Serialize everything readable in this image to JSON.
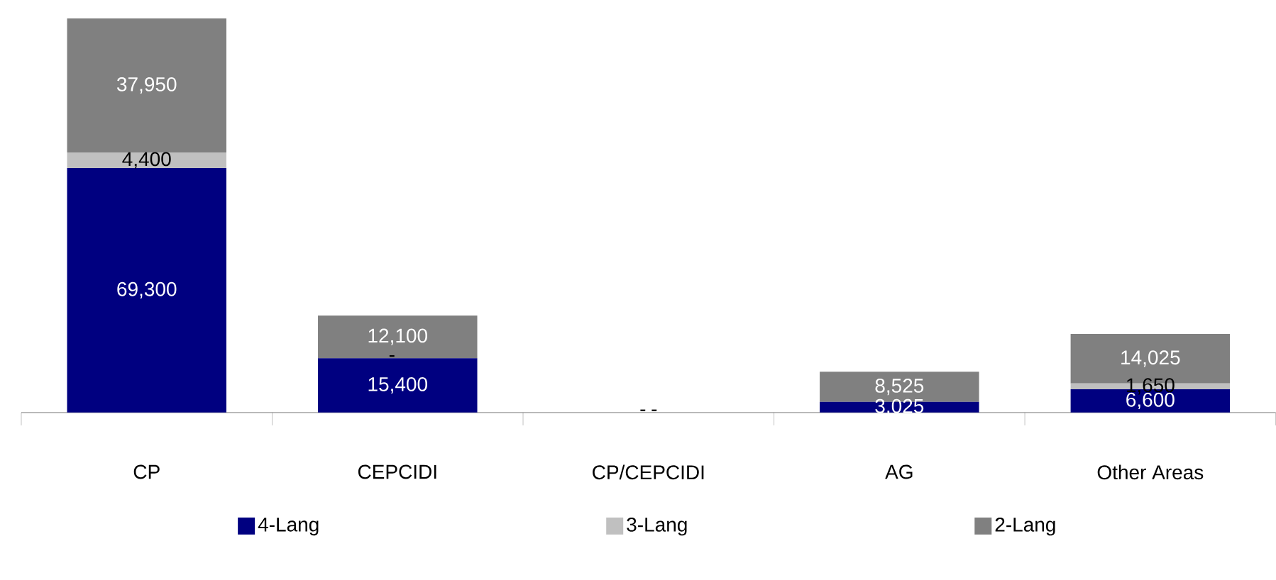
{
  "chart_data": {
    "type": "bar",
    "stacked": true,
    "legend": "bottom",
    "categories": [
      "CP",
      "CEPCIDI",
      "CP/CEPCIDI",
      "AG",
      "Other Areas"
    ],
    "series": [
      {
        "name": "4-Lang",
        "color": "#000080",
        "values": [
          69300,
          15400,
          0,
          3025,
          6600
        ],
        "value_labels": [
          "69,300",
          "15,400",
          "-",
          "3,025",
          "6,600"
        ]
      },
      {
        "name": "3-Lang",
        "color": "#c0c0c0",
        "values": [
          4400,
          0,
          0,
          0,
          1650
        ],
        "value_labels": [
          "4,400",
          "-",
          null,
          null,
          "1,650"
        ]
      },
      {
        "name": "2-Lang",
        "color": "#808080",
        "values": [
          37950,
          12100,
          0,
          8525,
          14025
        ],
        "value_labels": [
          "37,950",
          "12,100",
          "-",
          "8,525",
          "14,025"
        ]
      }
    ]
  }
}
